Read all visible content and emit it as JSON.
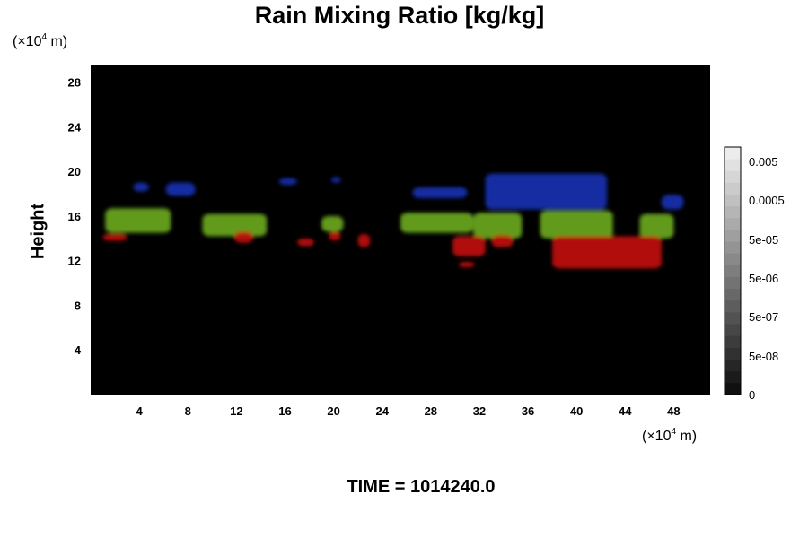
{
  "chart_data": {
    "type": "heatmap",
    "title": "Rain Mixing Ratio [kg/kg]",
    "ylabel": "Height",
    "y_unit": "(×10⁴ m)",
    "x_unit": "(×10⁴ m)",
    "y_unit_exponent": "4",
    "x_unit_exponent": "4",
    "unit_prefix": "(×10",
    "unit_suffix": " m)",
    "x_ticks": [
      "4",
      "8",
      "12",
      "16",
      "20",
      "24",
      "28",
      "32",
      "36",
      "40",
      "44",
      "48"
    ],
    "y_ticks": [
      "4",
      "8",
      "12",
      "16",
      "20",
      "24",
      "28"
    ],
    "xlim": [
      0,
      51
    ],
    "ylim": [
      0,
      29.5
    ],
    "colorbar_ticks": [
      "0.005",
      "0.0005",
      "5e-05",
      "5e-06",
      "5e-07",
      "5e-08",
      "0"
    ],
    "background_color": "#000000",
    "layer_colors": {
      "upper": "#1a2fb0",
      "middle": "#6aa81e",
      "lower": "#c01010"
    },
    "regions": [
      {
        "layer": "upper",
        "x": [
          3.5,
          4.8
        ],
        "y": [
          18.2,
          19.0
        ]
      },
      {
        "layer": "upper",
        "x": [
          6.2,
          8.6
        ],
        "y": [
          17.8,
          19.0
        ]
      },
      {
        "layer": "upper",
        "x": [
          15.5,
          17.0
        ],
        "y": [
          18.8,
          19.4
        ]
      },
      {
        "layer": "upper",
        "x": [
          19.8,
          20.6
        ],
        "y": [
          19.0,
          19.5
        ]
      },
      {
        "layer": "upper",
        "x": [
          26.5,
          31.0
        ],
        "y": [
          17.6,
          18.6
        ]
      },
      {
        "layer": "upper",
        "x": [
          32.5,
          42.5
        ],
        "y": [
          16.6,
          19.8
        ]
      },
      {
        "layer": "upper",
        "x": [
          47.0,
          48.8
        ],
        "y": [
          16.6,
          17.9
        ]
      },
      {
        "layer": "middle",
        "x": [
          1.2,
          6.6
        ],
        "y": [
          14.5,
          16.7
        ]
      },
      {
        "layer": "middle",
        "x": [
          9.2,
          14.5
        ],
        "y": [
          14.2,
          16.2
        ]
      },
      {
        "layer": "middle",
        "x": [
          19.0,
          20.8
        ],
        "y": [
          14.6,
          16.0
        ]
      },
      {
        "layer": "middle",
        "x": [
          25.5,
          31.5
        ],
        "y": [
          14.5,
          16.3
        ]
      },
      {
        "layer": "middle",
        "x": [
          31.5,
          35.5
        ],
        "y": [
          14.0,
          16.3
        ]
      },
      {
        "layer": "middle",
        "x": [
          37.0,
          43.0
        ],
        "y": [
          14.0,
          16.5
        ]
      },
      {
        "layer": "middle",
        "x": [
          45.2,
          48.0
        ],
        "y": [
          14.0,
          16.2
        ]
      },
      {
        "layer": "lower",
        "x": [
          1.0,
          3.0
        ],
        "y": [
          13.8,
          14.4
        ]
      },
      {
        "layer": "lower",
        "x": [
          11.8,
          13.4
        ],
        "y": [
          13.6,
          14.6
        ]
      },
      {
        "layer": "lower",
        "x": [
          17.0,
          18.4
        ],
        "y": [
          13.3,
          14.0
        ]
      },
      {
        "layer": "lower",
        "x": [
          19.6,
          20.6
        ],
        "y": [
          13.8,
          14.6
        ]
      },
      {
        "layer": "lower",
        "x": [
          22.0,
          23.0
        ],
        "y": [
          13.2,
          14.4
        ]
      },
      {
        "layer": "lower",
        "x": [
          29.8,
          32.5
        ],
        "y": [
          12.4,
          14.2
        ]
      },
      {
        "layer": "lower",
        "x": [
          33.0,
          34.8
        ],
        "y": [
          13.2,
          14.3
        ]
      },
      {
        "layer": "lower",
        "x": [
          38.0,
          47.0
        ],
        "y": [
          11.3,
          14.2
        ]
      },
      {
        "layer": "lower",
        "x": [
          30.3,
          31.6
        ],
        "y": [
          11.4,
          11.9
        ]
      }
    ]
  },
  "footer": {
    "time_label": "TIME = 1014240.0"
  }
}
